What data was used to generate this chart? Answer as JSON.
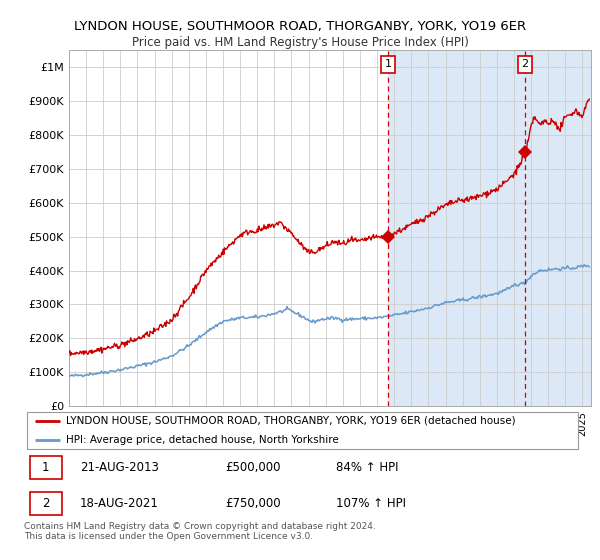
{
  "title1": "LYNDON HOUSE, SOUTHMOOR ROAD, THORGANBY, YORK, YO19 6ER",
  "title2": "Price paid vs. HM Land Registry's House Price Index (HPI)",
  "ylim": [
    0,
    1050000
  ],
  "xlim_start": 1995.0,
  "xlim_end": 2025.5,
  "background_color": "#ffffff",
  "plot_bg_color": "#dce8f5",
  "plot_bg_left_color": "#ffffff",
  "grid_color": "#cccccc",
  "red_line_color": "#cc0000",
  "blue_line_color": "#6699cc",
  "vline_color": "#cc0000",
  "shade_start": 2013.64,
  "shade_color": "#dce8f5",
  "sale1_x": 2013.64,
  "sale1_y": 500000,
  "sale2_x": 2021.64,
  "sale2_y": 750000,
  "legend_line1": "LYNDON HOUSE, SOUTHMOOR ROAD, THORGANBY, YORK, YO19 6ER (detached house)",
  "legend_line2": "HPI: Average price, detached house, North Yorkshire",
  "table_row1_date": "21-AUG-2013",
  "table_row1_price": "£500,000",
  "table_row1_hpi": "84% ↑ HPI",
  "table_row2_date": "18-AUG-2021",
  "table_row2_price": "£750,000",
  "table_row2_hpi": "107% ↑ HPI",
  "footer": "Contains HM Land Registry data © Crown copyright and database right 2024.\nThis data is licensed under the Open Government Licence v3.0.",
  "yticks": [
    0,
    100000,
    200000,
    300000,
    400000,
    500000,
    600000,
    700000,
    800000,
    900000,
    1000000
  ],
  "ytick_labels": [
    "£0",
    "£100K",
    "£200K",
    "£300K",
    "£400K",
    "£500K",
    "£600K",
    "£700K",
    "£800K",
    "£900K",
    "£1M"
  ]
}
